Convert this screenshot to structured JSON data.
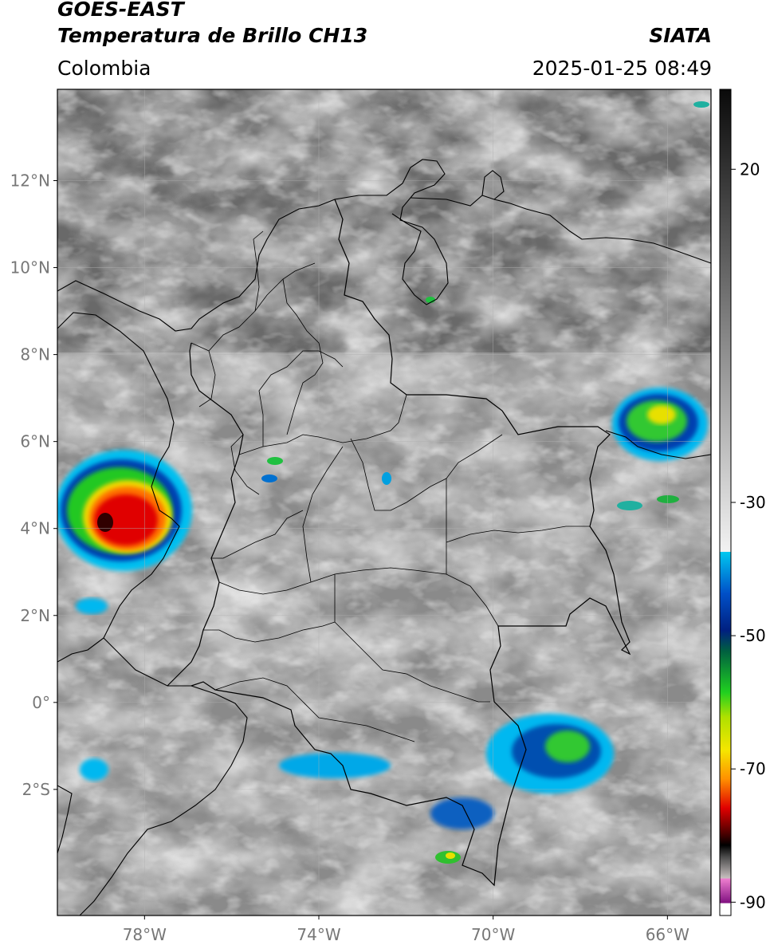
{
  "header": {
    "title_line1": "GOES-EAST",
    "title_line2": "Temperatura de Brillo CH13",
    "source": "SIATA",
    "region": "Colombia",
    "timestamp": "2025-01-25 08:49"
  },
  "map": {
    "lat_range": [
      -4.9,
      14.1
    ],
    "lon_range": [
      -80.0,
      -65.0
    ],
    "lat_ticks": [
      {
        "value": 12,
        "label": "12°N"
      },
      {
        "value": 10,
        "label": "10°N"
      },
      {
        "value": 8,
        "label": "8°N"
      },
      {
        "value": 6,
        "label": "6°N"
      },
      {
        "value": 4,
        "label": "4°N"
      },
      {
        "value": 2,
        "label": "2°N"
      },
      {
        "value": 0,
        "label": "0°"
      },
      {
        "value": -2,
        "label": "2°S"
      }
    ],
    "lon_ticks": [
      {
        "value": -78,
        "label": "78°W"
      },
      {
        "value": -74,
        "label": "74°W"
      },
      {
        "value": -70,
        "label": "70°W"
      },
      {
        "value": -66,
        "label": "66°W"
      }
    ],
    "gridlines": true
  },
  "colorbar": {
    "range": [
      -92,
      32
    ],
    "ticks": [
      {
        "value": 20,
        "label": "20"
      },
      {
        "value": -30,
        "label": "-30"
      },
      {
        "value": -50,
        "label": "-50"
      },
      {
        "value": -70,
        "label": "-70"
      },
      {
        "value": -90,
        "label": "-90"
      }
    ],
    "colors": {
      "warm": "#1a1a1a",
      "cold_gray": "#f0f0f0",
      "cyan": "#00c8f0",
      "blue": "#0028a0",
      "green": "#2ad02a",
      "yellow": "#f5e600",
      "orange": "#ff8c00",
      "red": "#e00000",
      "darkred": "#500000",
      "magenta": "#e060c0",
      "purple": "#801080"
    }
  }
}
